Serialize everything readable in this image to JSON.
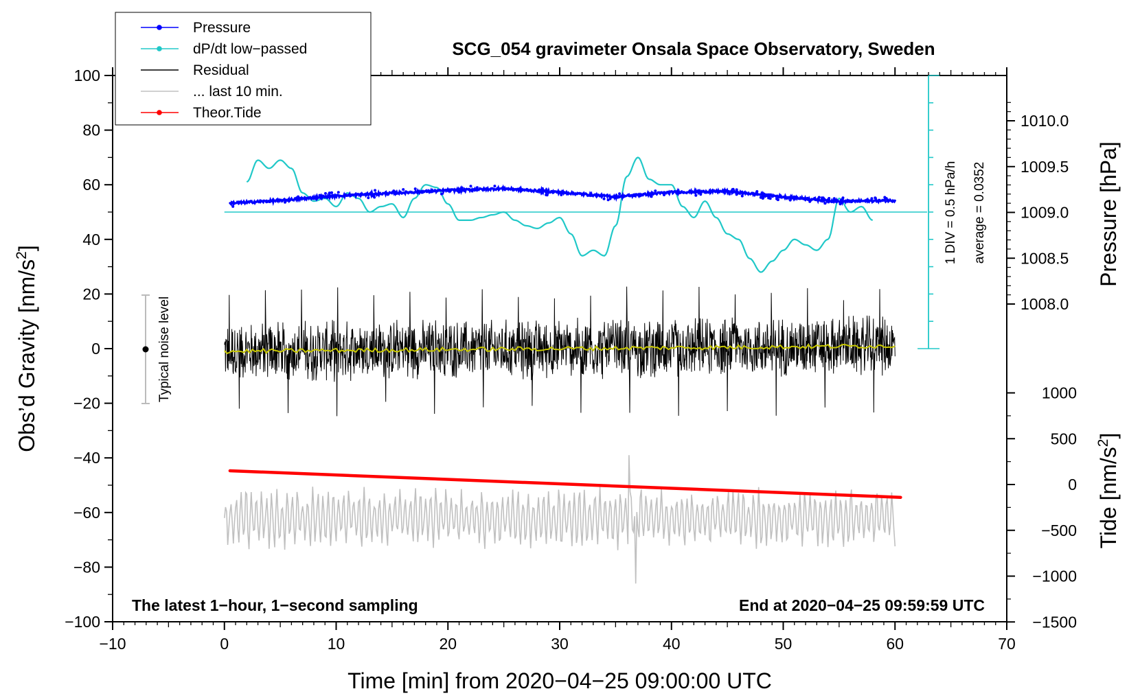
{
  "chart_data": {
    "type": "line",
    "title": "SCG_054 gravimeter Onsala Space Observatory, Sweden",
    "xlabel": "Time [min] from 2020−04−25 09:00:00 UTC",
    "ylabel_main": "Obs’d Gravity [nm/s",
    "ylabel_main_tail": "]",
    "ylabel_pressure": "Pressure [hPa]",
    "ylabel_tide": "Tide [nm/s",
    "ylabel_tide_tail": "]",
    "superscript": "2",
    "xlim": [
      -10,
      70
    ],
    "ylim": [
      -100,
      100
    ],
    "x_ticks": [
      "−10",
      "0",
      "10",
      "20",
      "30",
      "40",
      "50",
      "60",
      "70"
    ],
    "y_ticks": [
      "−100",
      "−80",
      "−60",
      "−40",
      "−20",
      "0",
      "20",
      "40",
      "60",
      "80",
      "100"
    ],
    "pressure_axis": {
      "ticks": [
        "1008.0",
        "1008.5",
        "1009.0",
        "1009.5",
        "1010.0"
      ],
      "values": [
        1008.0,
        1008.5,
        1009.0,
        1009.5,
        1010.0
      ]
    },
    "tide_axis": {
      "ticks": [
        "1000",
        "500",
        "0",
        "−500",
        "−1000",
        "−1500"
      ],
      "values": [
        1000,
        500,
        0,
        -500,
        -1000,
        -1500
      ]
    },
    "legend": [
      {
        "label": "Pressure",
        "color": "#0000ff",
        "marker": "dot"
      },
      {
        "label": "dP/dt low−passed",
        "color": "#20c8c8",
        "marker": "dot"
      },
      {
        "label": "Residual",
        "color": "#000000",
        "marker": "none"
      },
      {
        "label": "... last 10 min.",
        "color": "#c0c0c0",
        "marker": "none"
      },
      {
        "label": "Theor.Tide",
        "color": "#ff0000",
        "marker": "dot"
      }
    ],
    "annotations": {
      "noise": "Typical noise level",
      "div": "1 DIV = 0.5 hPa/h",
      "average": "average = 0.0352",
      "bottom_left": "The latest 1−hour, 1−second sampling",
      "bottom_right": "End at 2020−04−25 09:59:59 UTC"
    },
    "series": [
      {
        "name": "Pressure",
        "unit": "hPa",
        "color": "#0000ff",
        "x": [
          0.5,
          5,
          10,
          15,
          20,
          25,
          30,
          35,
          40,
          45,
          50,
          55,
          60
        ],
        "values": [
          1009.1,
          1009.13,
          1009.18,
          1009.21,
          1009.24,
          1009.26,
          1009.22,
          1009.17,
          1009.22,
          1009.23,
          1009.17,
          1009.12,
          1009.13
        ]
      },
      {
        "name": "dP/dt low-passed",
        "unit": "nm/s2-scaled",
        "color": "#20c8c8",
        "x": [
          2,
          3,
          4,
          5,
          6,
          7,
          8,
          9,
          10,
          11,
          12,
          13,
          14,
          15,
          16,
          17,
          18,
          19,
          20,
          21,
          22,
          23,
          24,
          25,
          26,
          27,
          28,
          29,
          30,
          31,
          32,
          33,
          34,
          35,
          36,
          37,
          38,
          39,
          40,
          41,
          42,
          43,
          44,
          45,
          46,
          47,
          48,
          49,
          50,
          51,
          52,
          53,
          54,
          55,
          56,
          57,
          58
        ],
        "values": [
          61,
          69,
          66,
          69,
          66,
          57,
          54,
          55,
          52,
          57,
          55,
          50,
          52,
          53,
          48,
          55,
          60,
          59,
          53,
          47,
          47,
          48,
          49,
          50,
          47,
          45,
          44,
          46,
          48,
          42,
          34,
          36,
          34,
          45,
          63,
          70,
          62,
          60,
          60,
          52,
          48,
          54,
          48,
          42,
          40,
          33,
          28,
          32,
          36,
          40,
          38,
          36,
          40,
          55,
          50,
          52,
          47
        ]
      },
      {
        "name": "Residual",
        "unit": "nm/s2",
        "color": "#000000",
        "x": [
          0,
          60
        ],
        "amplitude": 10,
        "extremes": [
          23,
          -25
        ],
        "trend": [
          -1,
          1
        ]
      },
      {
        "name": "Theor.Tide",
        "unit": "nm/s2",
        "color": "#ff0000",
        "x": [
          0.5,
          60.5
        ],
        "values": [
          150,
          -140
        ]
      },
      {
        "name": "... last 10 min.",
        "unit": "nm/s2",
        "color": "#c0c0c0",
        "x": [
          0,
          60
        ],
        "center": -62,
        "amplitude": 10,
        "extremes": [
          -39,
          -86
        ]
      }
    ]
  }
}
